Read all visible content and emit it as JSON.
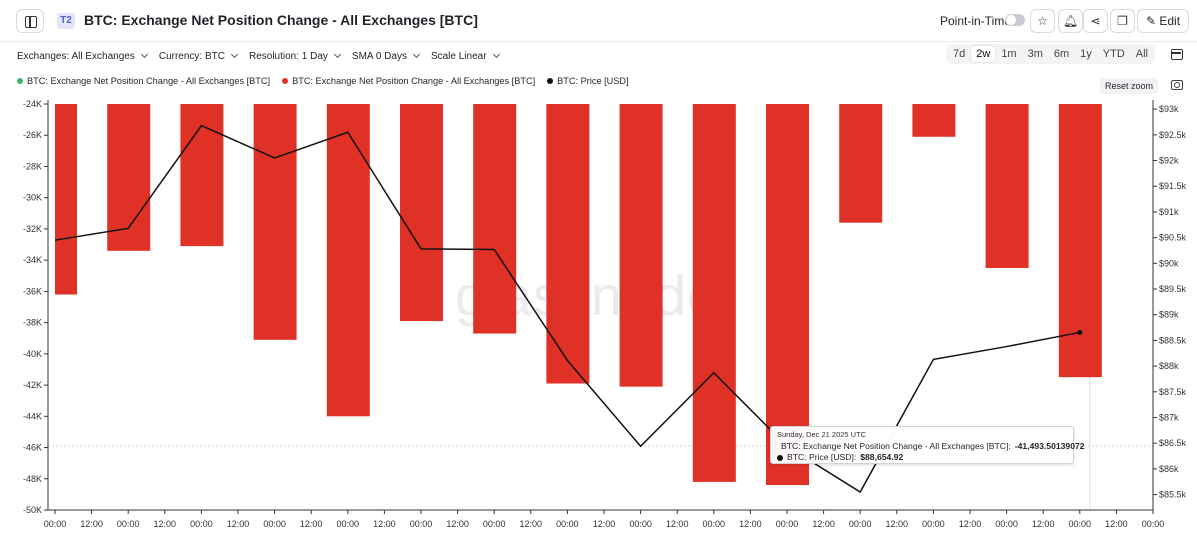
{
  "header": {
    "badge": "T2",
    "title": "BTC: Exchange Net Position Change - All Exchanges [BTC]",
    "point_in_time_label": "Point-in-Time",
    "edit_label": "Edit"
  },
  "filters": {
    "exchanges": "Exchanges: All Exchanges",
    "currency": "Currency: BTC",
    "resolution": "Resolution: 1 Day",
    "sma": "SMA 0 Days",
    "scale": "Scale Linear"
  },
  "ranges": [
    "7d",
    "2w",
    "1m",
    "3m",
    "6m",
    "1y",
    "YTD",
    "All"
  ],
  "active_range": "2w",
  "legend": [
    {
      "label": "BTC: Exchange Net Position Change - All Exchanges [BTC]",
      "color": "#3cb371"
    },
    {
      "label": "BTC: Exchange Net Position Change - All Exchanges [BTC]",
      "color": "#e03127"
    },
    {
      "label": "BTC: Price [USD]",
      "color": "#111111"
    }
  ],
  "reset_zoom": "Reset zoom",
  "watermark": "glassnode",
  "tooltip": {
    "date": "Sunday, Dec 21 2025 UTC",
    "series1_label": "BTC: Exchange Net Position Change - All Exchanges [BTC]:",
    "series1_value": "-41,493.50139072",
    "series2_label": "BTC: Price [USD]:",
    "series2_value": "$88,654.92",
    "series1_color": "#e03127",
    "series2_color": "#111111"
  },
  "chart_data": {
    "type": "bar+line",
    "title": "BTC: Exchange Net Position Change - All Exchanges [BTC]",
    "x_tick_labels": [
      "00:00",
      "12:00",
      "00:00",
      "12:00",
      "00:00",
      "12:00",
      "00:00",
      "12:00",
      "00:00",
      "12:00",
      "00:00",
      "12:00",
      "00:00",
      "12:00",
      "00:00",
      "12:00",
      "00:00",
      "12:00",
      "00:00",
      "12:00",
      "00:00",
      "12:00",
      "00:00",
      "12:00",
      "00:00",
      "12:00",
      "00:00",
      "12:00",
      "00:00",
      "12:00",
      "00:00"
    ],
    "y_left": {
      "ticks": [
        -24,
        -26,
        -28,
        -30,
        -32,
        -34,
        -36,
        -38,
        -40,
        -42,
        -44,
        -46,
        -48,
        -50
      ],
      "tick_labels": [
        "-24K",
        "-26K",
        "-28K",
        "-30K",
        "-32K",
        "-34K",
        "-36K",
        "-38K",
        "-40K",
        "-42K",
        "-44K",
        "-46K",
        "-48K",
        "-50K"
      ],
      "range": [
        -50000,
        -24000
      ],
      "unit": "BTC"
    },
    "y_right": {
      "ticks": [
        93000,
        92500,
        92000,
        91500,
        91000,
        90500,
        90000,
        89500,
        89000,
        88500,
        88000,
        87500,
        87000,
        86500,
        86000,
        85500
      ],
      "tick_labels": [
        "$93k",
        "$92.5k",
        "$92k",
        "$91.5k",
        "$91k",
        "$90.5k",
        "$90k",
        "$89.5k",
        "$89k",
        "$88.5k",
        "$88k",
        "$87.5k",
        "$87k",
        "$86.5k",
        "$86k",
        "$85.5k"
      ],
      "range": [
        85200,
        93100
      ],
      "unit": "USD"
    },
    "series": [
      {
        "name": "BTC: Exchange Net Position Change - All Exchanges [BTC]",
        "kind": "bar",
        "color": "#e03127",
        "values": [
          -36200,
          -33400,
          -33100,
          -39100,
          -44000,
          -37900,
          -38700,
          -41900,
          -42100,
          -48200,
          -48400,
          -31600,
          -26100,
          -34500,
          -41494
        ]
      },
      {
        "name": "BTC: Price [USD]",
        "kind": "line",
        "color": "#111111",
        "values": [
          90450,
          90680,
          92680,
          92050,
          92550,
          90280,
          90270,
          88110,
          86440,
          87870,
          86440,
          85550,
          88130,
          88380,
          88655
        ]
      }
    ],
    "crosshair_y": -45900,
    "highlight_index": 14
  }
}
